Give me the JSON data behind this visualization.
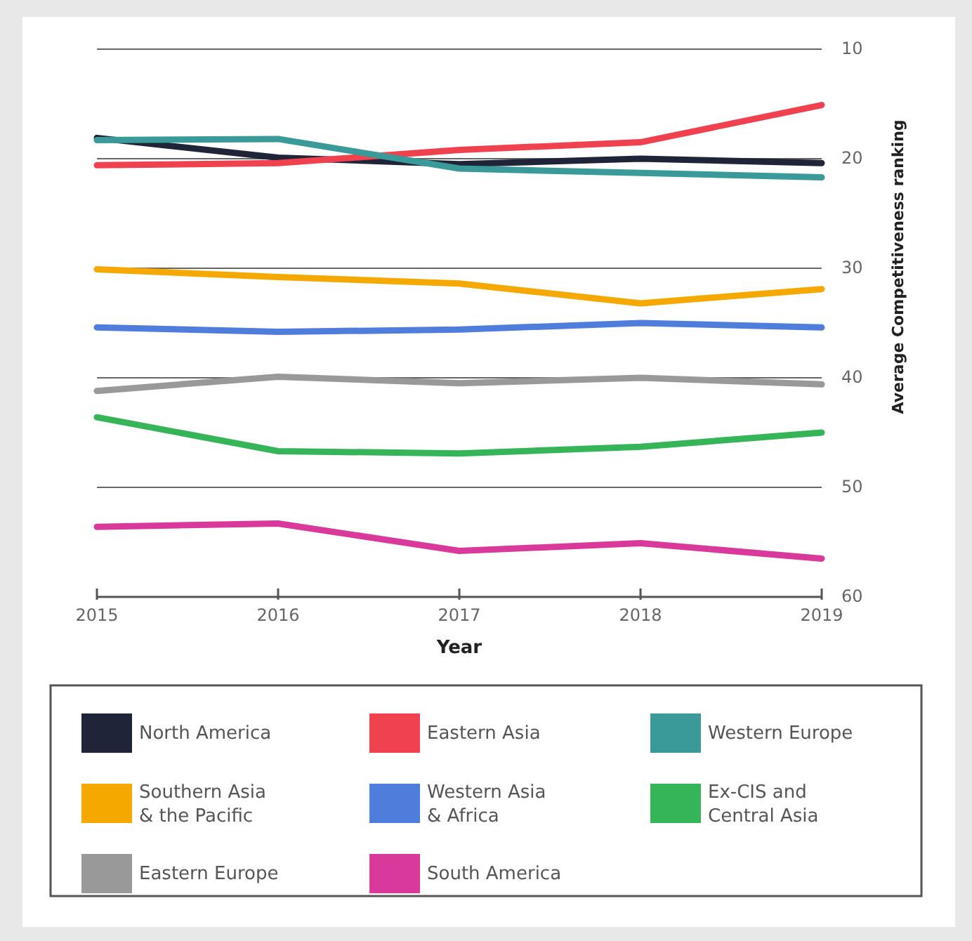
{
  "chart_data": {
    "type": "line",
    "xlabel": "Year",
    "ylabel": "Average Competitiveness ranking",
    "x": [
      2015,
      2016,
      2017,
      2018,
      2019
    ],
    "xlim": [
      2015,
      2019
    ],
    "xticks": [
      2015,
      2016,
      2017,
      2018,
      2019
    ],
    "ylim": [
      60,
      10
    ],
    "yticks": [
      10,
      20,
      30,
      40,
      50,
      60
    ],
    "grid": "y",
    "legend": "bottom",
    "marker": "none",
    "line_style": "solid",
    "series": [
      {
        "name": "North America",
        "color": "#1f2438",
        "values": [
          18.1,
          19.9,
          20.5,
          20.0,
          20.4
        ]
      },
      {
        "name": "Eastern Asia",
        "color": "#f0414f",
        "values": [
          20.6,
          20.4,
          19.2,
          18.5,
          15.1
        ]
      },
      {
        "name": "Western Europe",
        "color": "#3a9a9a",
        "values": [
          18.3,
          18.2,
          20.9,
          21.3,
          21.7
        ]
      },
      {
        "name": "Southern Asia\n& the Pacific",
        "color": "#f5a800",
        "values": [
          30.1,
          30.8,
          31.4,
          33.2,
          31.9
        ]
      },
      {
        "name": "Western Asia\n& Africa",
        "color": "#4f7ddc",
        "values": [
          35.4,
          35.8,
          35.6,
          35.0,
          35.4
        ]
      },
      {
        "name": "Ex-CIS and\nCentral Asia",
        "color": "#36b558",
        "values": [
          43.6,
          46.7,
          46.9,
          46.3,
          45.0
        ]
      },
      {
        "name": "Eastern Europe",
        "color": "#999999",
        "values": [
          41.2,
          39.9,
          40.5,
          40.0,
          40.6
        ]
      },
      {
        "name": "South America",
        "color": "#d9399a",
        "values": [
          53.6,
          53.3,
          55.8,
          55.1,
          56.5
        ]
      }
    ]
  }
}
